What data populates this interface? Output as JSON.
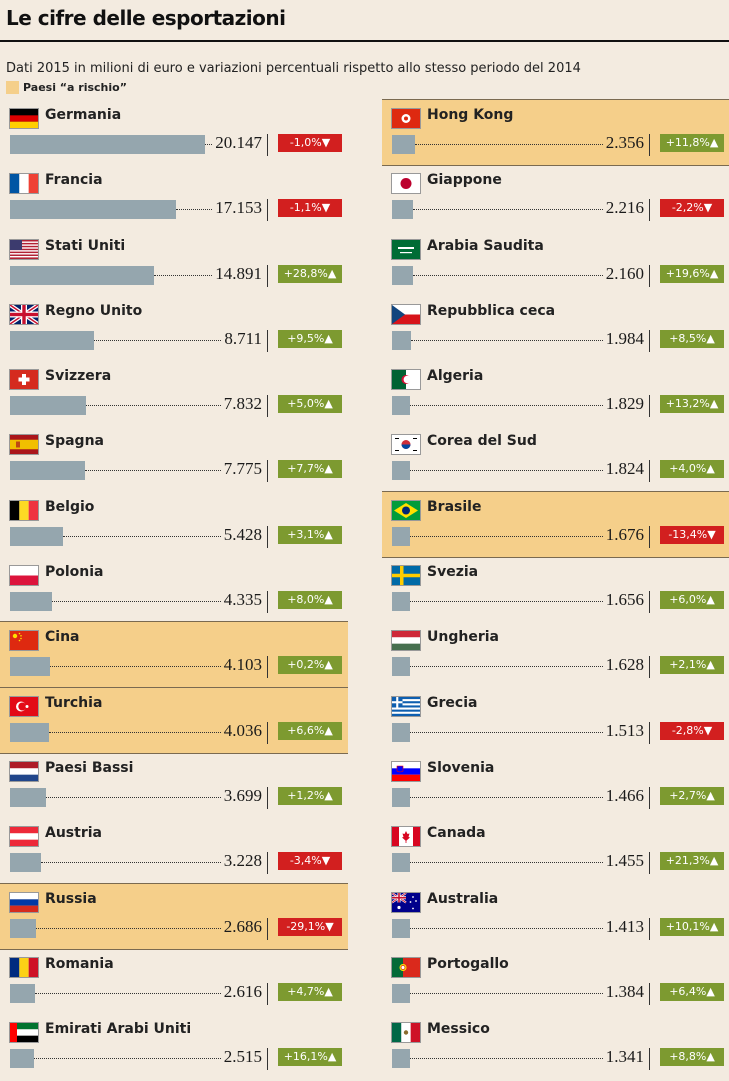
{
  "title": "Le cifre delle esportazioni",
  "subtitle": "Dati 2015 in milioni di euro e variazioni percentuali rispetto allo stesso periodo del 2014",
  "legend_label": "Paesi “a rischio”",
  "colors": {
    "bar": "#95a6ae",
    "risk_highlight": "#f5cf8a",
    "positive": "#7d9a30",
    "negative": "#d21f1f",
    "background": "#f3ebe0"
  },
  "chart_data": {
    "type": "bar",
    "orientation": "horizontal",
    "title": "Le cifre delle esportazioni",
    "subtitle": "Dati 2015 in milioni di euro e variazioni percentuali rispetto allo stesso periodo del 2014",
    "max_value": 20147,
    "categories": [
      "Germania",
      "Francia",
      "Stati Uniti",
      "Regno Unito",
      "Svizzera",
      "Spagna",
      "Belgio",
      "Polonia",
      "Cina",
      "Turchia",
      "Paesi Bassi",
      "Austria",
      "Russia",
      "Romania",
      "Emirati Arabi Uniti",
      "Hong Kong",
      "Giappone",
      "Arabia Saudita",
      "Repubblica ceca",
      "Algeria",
      "Corea del Sud",
      "Brasile",
      "Svezia",
      "Ungheria",
      "Grecia",
      "Slovenia",
      "Canada",
      "Australia",
      "Portogallo",
      "Messico"
    ],
    "countries": [
      {
        "name": "Germania",
        "value": 20147,
        "value_label": "20.147",
        "change": -1.0,
        "change_label": "-1,0%▼",
        "risk": false,
        "flag": "germany-flag-icon",
        "column": "left"
      },
      {
        "name": "Francia",
        "value": 17153,
        "value_label": "17.153",
        "change": -1.1,
        "change_label": "-1,1%▼",
        "risk": false,
        "flag": "france-flag-icon",
        "column": "left"
      },
      {
        "name": "Stati Uniti",
        "value": 14891,
        "value_label": "14.891",
        "change": 28.8,
        "change_label": "+28,8%▲",
        "risk": false,
        "flag": "usa-flag-icon",
        "column": "left"
      },
      {
        "name": "Regno Unito",
        "value": 8711,
        "value_label": "8.711",
        "change": 9.5,
        "change_label": "+9,5%▲",
        "risk": false,
        "flag": "uk-flag-icon",
        "column": "left"
      },
      {
        "name": "Svizzera",
        "value": 7832,
        "value_label": "7.832",
        "change": 5.0,
        "change_label": "+5,0%▲",
        "risk": false,
        "flag": "switzerland-flag-icon",
        "column": "left"
      },
      {
        "name": "Spagna",
        "value": 7775,
        "value_label": "7.775",
        "change": 7.7,
        "change_label": "+7,7%▲",
        "risk": false,
        "flag": "spain-flag-icon",
        "column": "left"
      },
      {
        "name": "Belgio",
        "value": 5428,
        "value_label": "5.428",
        "change": 3.1,
        "change_label": "+3,1%▲",
        "risk": false,
        "flag": "belgium-flag-icon",
        "column": "left"
      },
      {
        "name": "Polonia",
        "value": 4335,
        "value_label": "4.335",
        "change": 8.0,
        "change_label": "+8,0%▲",
        "risk": false,
        "flag": "poland-flag-icon",
        "column": "left"
      },
      {
        "name": "Cina",
        "value": 4103,
        "value_label": "4.103",
        "change": 0.2,
        "change_label": "+0,2%▲",
        "risk": true,
        "flag": "china-flag-icon",
        "column": "left"
      },
      {
        "name": "Turchia",
        "value": 4036,
        "value_label": "4.036",
        "change": 6.6,
        "change_label": "+6,6%▲",
        "risk": true,
        "flag": "turkey-flag-icon",
        "column": "left"
      },
      {
        "name": "Paesi Bassi",
        "value": 3699,
        "value_label": "3.699",
        "change": 1.2,
        "change_label": "+1,2%▲",
        "risk": false,
        "flag": "netherlands-flag-icon",
        "column": "left"
      },
      {
        "name": "Austria",
        "value": 3228,
        "value_label": "3.228",
        "change": -3.4,
        "change_label": "-3,4%▼",
        "risk": false,
        "flag": "austria-flag-icon",
        "column": "left"
      },
      {
        "name": "Russia",
        "value": 2686,
        "value_label": "2.686",
        "change": -29.1,
        "change_label": "-29,1%▼",
        "risk": true,
        "flag": "russia-flag-icon",
        "column": "left"
      },
      {
        "name": "Romania",
        "value": 2616,
        "value_label": "2.616",
        "change": 4.7,
        "change_label": "+4,7%▲",
        "risk": false,
        "flag": "romania-flag-icon",
        "column": "left"
      },
      {
        "name": "Emirati Arabi Uniti",
        "value": 2515,
        "value_label": "2.515",
        "change": 16.1,
        "change_label": "+16,1%▲",
        "risk": false,
        "flag": "uae-flag-icon",
        "column": "left"
      },
      {
        "name": "Hong Kong",
        "value": 2356,
        "value_label": "2.356",
        "change": 11.8,
        "change_label": "+11,8%▲",
        "risk": true,
        "flag": "hongkong-flag-icon",
        "column": "right"
      },
      {
        "name": "Giappone",
        "value": 2216,
        "value_label": "2.216",
        "change": -2.2,
        "change_label": "-2,2%▼",
        "risk": false,
        "flag": "japan-flag-icon",
        "column": "right"
      },
      {
        "name": "Arabia Saudita",
        "value": 2160,
        "value_label": "2.160",
        "change": 19.6,
        "change_label": "+19,6%▲",
        "risk": false,
        "flag": "saudi-flag-icon",
        "column": "right"
      },
      {
        "name": "Repubblica ceca",
        "value": 1984,
        "value_label": "1.984",
        "change": 8.5,
        "change_label": "+8,5%▲",
        "risk": false,
        "flag": "czech-flag-icon",
        "column": "right"
      },
      {
        "name": "Algeria",
        "value": 1829,
        "value_label": "1.829",
        "change": 13.2,
        "change_label": "+13,2%▲",
        "risk": false,
        "flag": "algeria-flag-icon",
        "column": "right"
      },
      {
        "name": "Corea del Sud",
        "value": 1824,
        "value_label": "1.824",
        "change": 4.0,
        "change_label": "+4,0%▲",
        "risk": false,
        "flag": "korea-flag-icon",
        "column": "right"
      },
      {
        "name": "Brasile",
        "value": 1676,
        "value_label": "1.676",
        "change": -13.4,
        "change_label": "-13,4%▼",
        "risk": true,
        "flag": "brazil-flag-icon",
        "column": "right"
      },
      {
        "name": "Svezia",
        "value": 1656,
        "value_label": "1.656",
        "change": 6.0,
        "change_label": "+6,0%▲",
        "risk": false,
        "flag": "sweden-flag-icon",
        "column": "right"
      },
      {
        "name": "Ungheria",
        "value": 1628,
        "value_label": "1.628",
        "change": 2.1,
        "change_label": "+2,1%▲",
        "risk": false,
        "flag": "hungary-flag-icon",
        "column": "right"
      },
      {
        "name": "Grecia",
        "value": 1513,
        "value_label": "1.513",
        "change": -2.8,
        "change_label": "-2,8%▼",
        "risk": false,
        "flag": "greece-flag-icon",
        "column": "right"
      },
      {
        "name": "Slovenia",
        "value": 1466,
        "value_label": "1.466",
        "change": 2.7,
        "change_label": "+2,7%▲",
        "risk": false,
        "flag": "slovenia-flag-icon",
        "column": "right"
      },
      {
        "name": "Canada",
        "value": 1455,
        "value_label": "1.455",
        "change": 21.3,
        "change_label": "+21,3%▲",
        "risk": false,
        "flag": "canada-flag-icon",
        "column": "right"
      },
      {
        "name": "Australia",
        "value": 1413,
        "value_label": "1.413",
        "change": 10.1,
        "change_label": "+10,1%▲",
        "risk": false,
        "flag": "australia-flag-icon",
        "column": "right"
      },
      {
        "name": "Portogallo",
        "value": 1384,
        "value_label": "1.384",
        "change": 6.4,
        "change_label": "+6,4%▲",
        "risk": false,
        "flag": "portugal-flag-icon",
        "column": "right"
      },
      {
        "name": "Messico",
        "value": 1341,
        "value_label": "1.341",
        "change": 8.8,
        "change_label": "+8,8%▲",
        "risk": false,
        "flag": "mexico-flag-icon",
        "column": "right"
      }
    ]
  }
}
